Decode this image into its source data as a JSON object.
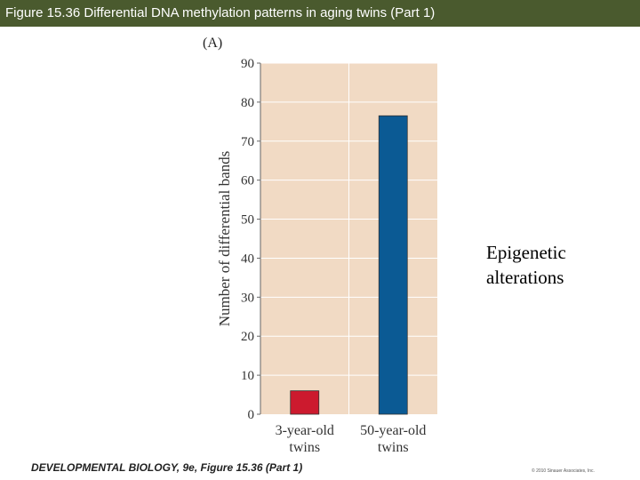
{
  "header": {
    "title": "Figure 15.36  Differential DNA methylation patterns in aging twins (Part 1)",
    "bar_color": "#4a5a2e"
  },
  "panel_label": "(A)",
  "side_note": [
    "Epigenetic",
    "alterations"
  ],
  "footer": {
    "citation": "DEVELOPMENTAL BIOLOGY, 9e, Figure 15.36 (Part 1)",
    "copyright": "© 2010 Sinauer Associates, Inc."
  },
  "chart_data": {
    "type": "bar",
    "categories": [
      [
        "3-year-old",
        "twins"
      ],
      [
        "50-year-old",
        "twins"
      ]
    ],
    "values": [
      6,
      76.5
    ],
    "bar_colors": [
      "#cc1a2e",
      "#0b5a94"
    ],
    "ylabel": "Number of differential bands",
    "ylim": [
      0,
      90
    ],
    "yticks": [
      0,
      10,
      20,
      30,
      40,
      50,
      60,
      70,
      80,
      90
    ],
    "plot_background": "#f1dac4",
    "grid": true
  }
}
